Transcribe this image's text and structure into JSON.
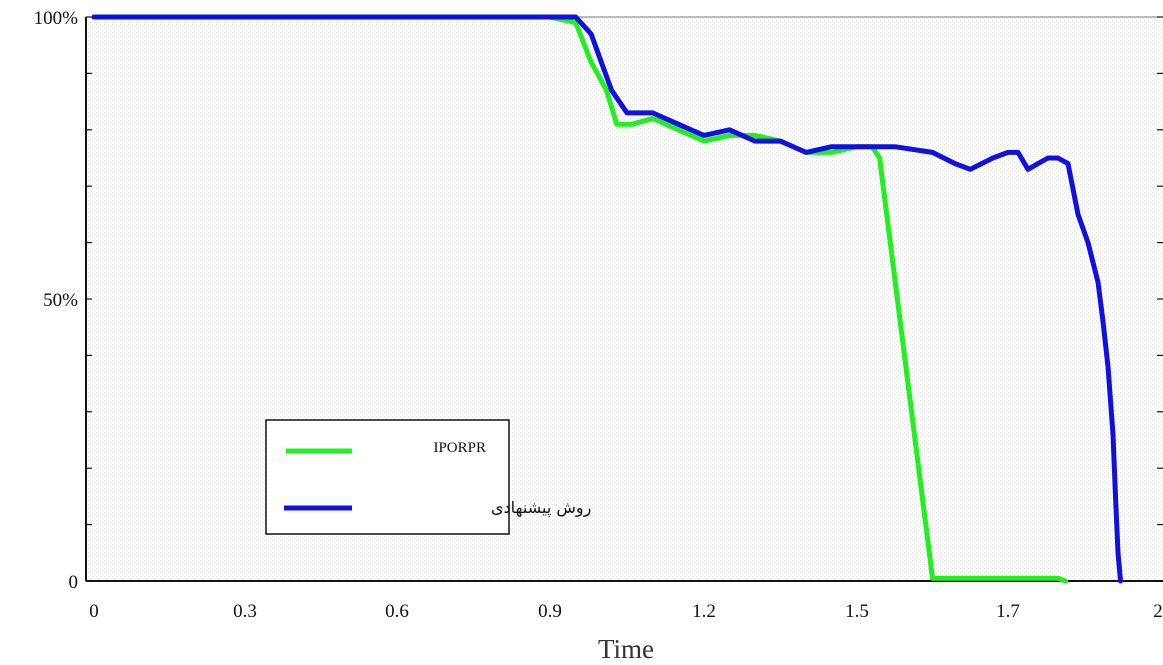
{
  "chart_data": {
    "type": "line",
    "xlabel": "Time",
    "ylabel": "",
    "title": "",
    "xlim": [
      0,
      2
    ],
    "ylim": [
      0,
      100
    ],
    "x_ticks": [
      0,
      0.3,
      0.6,
      0.9,
      1.2,
      1.5,
      1.7,
      2
    ],
    "x_tick_labels": [
      "0",
      "0.3",
      "0.6",
      "0.9",
      "1.2",
      "1.5",
      "1.7",
      "2"
    ],
    "y_ticks": [
      0,
      10,
      20,
      30,
      40,
      50,
      60,
      70,
      80,
      90,
      100
    ],
    "y_tick_labels": {
      "0": "0",
      "50": "50%",
      "100": "100%"
    },
    "grid": false,
    "legend_position": "bottom-left",
    "series": [
      {
        "name": "IPORPR",
        "color": "#22ee22",
        "x": [
          0,
          0.9,
          0.95,
          0.98,
          1.01,
          1.03,
          1.06,
          1.1,
          1.15,
          1.2,
          1.25,
          1.3,
          1.35,
          1.4,
          1.45,
          1.5,
          1.52,
          1.53,
          1.6,
          1.62,
          1.8,
          1.815
        ],
        "y": [
          100,
          100,
          99,
          92,
          87,
          81,
          81,
          82,
          80,
          78,
          79,
          79,
          78,
          76,
          76,
          77,
          77,
          75,
          0.5,
          0.5,
          0.5,
          0
        ]
      },
      {
        "name": "روش پیشنهادی",
        "color": "#1010e0",
        "x": [
          0,
          0.9,
          0.95,
          0.98,
          1.0,
          1.02,
          1.05,
          1.1,
          1.15,
          1.2,
          1.25,
          1.3,
          1.35,
          1.4,
          1.45,
          1.5,
          1.52,
          1.55,
          1.6,
          1.63,
          1.65,
          1.68,
          1.7,
          1.72,
          1.74,
          1.76,
          1.78,
          1.8,
          1.82,
          1.84,
          1.86,
          1.88,
          1.89,
          1.9,
          1.91,
          1.915,
          1.92,
          1.925
        ],
        "y": [
          100,
          100,
          100,
          97,
          92,
          87,
          83,
          83,
          81,
          79,
          80,
          78,
          78,
          76,
          77,
          77,
          77,
          77,
          76,
          74,
          73,
          75,
          76,
          76,
          73,
          74,
          75,
          75,
          74,
          65,
          60,
          53,
          46,
          38,
          26,
          15,
          5,
          0
        ]
      }
    ]
  }
}
